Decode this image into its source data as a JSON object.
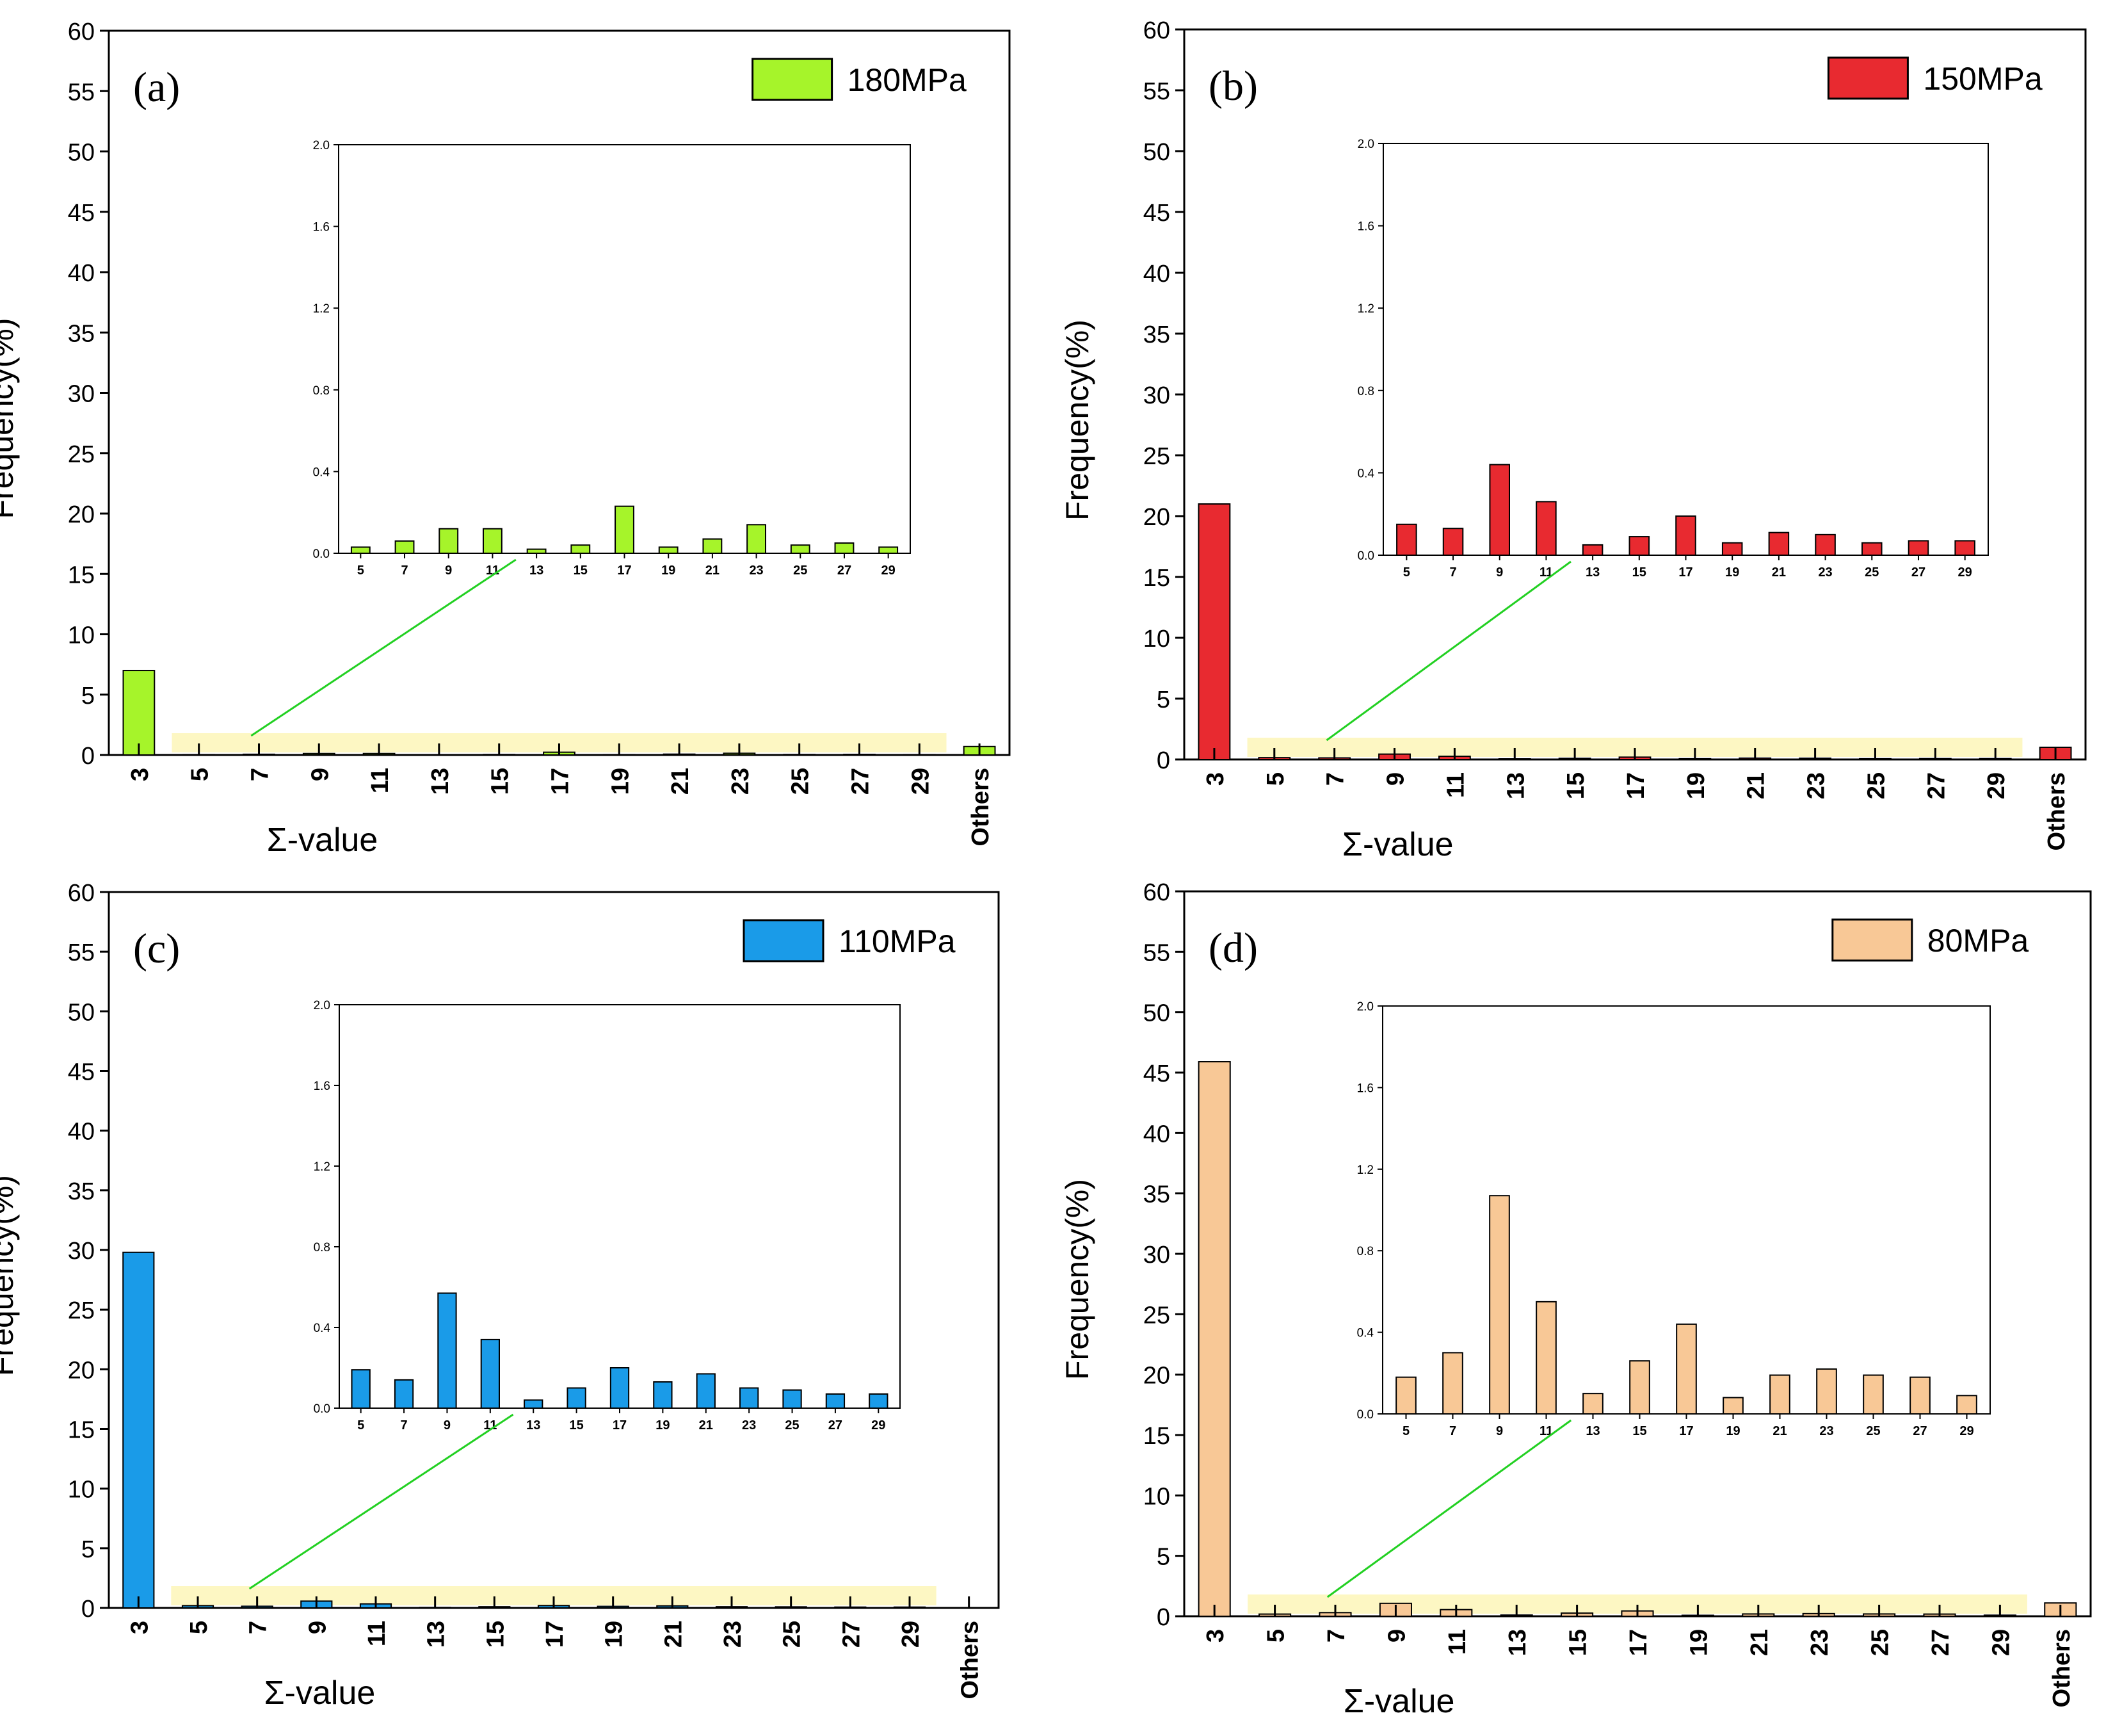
{
  "chart_data": [
    {
      "type": "bar",
      "panel_label": "(a)",
      "legend_label": "180MPa",
      "color": "#a6f42a",
      "xlabel": "Σ-value",
      "ylabel": "Frequency(%)",
      "ylim": [
        0,
        60
      ],
      "yticks": [
        0,
        5,
        10,
        15,
        20,
        25,
        30,
        35,
        40,
        45,
        50,
        55,
        60
      ],
      "categories": [
        "3",
        "5",
        "7",
        "9",
        "11",
        "13",
        "15",
        "17",
        "19",
        "21",
        "23",
        "25",
        "27",
        "29",
        "Others"
      ],
      "values": [
        7.0,
        0.03,
        0.06,
        0.12,
        0.12,
        0.02,
        0.04,
        0.23,
        0.03,
        0.07,
        0.14,
        0.04,
        0.05,
        0.03,
        0.7
      ],
      "inset": {
        "ylim": [
          0,
          2.0
        ],
        "yticks": [
          "0.0",
          "0.4",
          "0.8",
          "1.2",
          "1.6",
          "2.0"
        ],
        "categories": [
          "5",
          "7",
          "9",
          "11",
          "13",
          "15",
          "17",
          "19",
          "21",
          "23",
          "25",
          "27",
          "29"
        ],
        "values": [
          0.03,
          0.06,
          0.12,
          0.12,
          0.02,
          0.04,
          0.23,
          0.03,
          0.07,
          0.14,
          0.04,
          0.05,
          0.03
        ]
      }
    },
    {
      "type": "bar",
      "panel_label": "(b)",
      "legend_label": "150MPa",
      "color": "#e82a30",
      "xlabel": "Σ-value",
      "ylabel": "Frequency(%)",
      "ylim": [
        0,
        60
      ],
      "yticks": [
        0,
        5,
        10,
        15,
        20,
        25,
        30,
        35,
        40,
        45,
        50,
        55,
        60
      ],
      "categories": [
        "3",
        "5",
        "7",
        "9",
        "11",
        "13",
        "15",
        "17",
        "19",
        "21",
        "23",
        "25",
        "27",
        "29",
        "Others"
      ],
      "values": [
        21.0,
        0.15,
        0.13,
        0.44,
        0.26,
        0.05,
        0.09,
        0.19,
        0.06,
        0.11,
        0.1,
        0.06,
        0.07,
        0.07,
        1.0
      ],
      "inset": {
        "ylim": [
          0,
          2.0
        ],
        "yticks": [
          "0.0",
          "0.4",
          "0.8",
          "1.2",
          "1.6",
          "2.0"
        ],
        "categories": [
          "5",
          "7",
          "9",
          "11",
          "13",
          "15",
          "17",
          "19",
          "21",
          "23",
          "25",
          "27",
          "29"
        ],
        "values": [
          0.15,
          0.13,
          0.44,
          0.26,
          0.05,
          0.09,
          0.19,
          0.06,
          0.11,
          0.1,
          0.06,
          0.07,
          0.07
        ]
      }
    },
    {
      "type": "bar",
      "panel_label": "(c)",
      "legend_label": "110MPa",
      "color": "#1a9be8",
      "xlabel": "Σ-value",
      "ylabel": "Frequency(%)",
      "ylim": [
        0,
        60
      ],
      "yticks": [
        0,
        5,
        10,
        15,
        20,
        25,
        30,
        35,
        40,
        45,
        50,
        55,
        60
      ],
      "categories": [
        "3",
        "5",
        "7",
        "9",
        "11",
        "13",
        "15",
        "17",
        "19",
        "21",
        "23",
        "25",
        "27",
        "29",
        "Others"
      ],
      "values": [
        29.8,
        0.19,
        0.14,
        0.57,
        0.34,
        0.04,
        0.1,
        0.2,
        0.13,
        0.17,
        0.1,
        0.09,
        0.07,
        0.07,
        0.0
      ],
      "inset": {
        "ylim": [
          0,
          2.0
        ],
        "yticks": [
          "0.0",
          "0.4",
          "0.8",
          "1.2",
          "1.6",
          "2.0"
        ],
        "categories": [
          "5",
          "7",
          "9",
          "11",
          "13",
          "15",
          "17",
          "19",
          "21",
          "23",
          "25",
          "27",
          "29"
        ],
        "values": [
          0.19,
          0.14,
          0.57,
          0.34,
          0.04,
          0.1,
          0.2,
          0.13,
          0.17,
          0.1,
          0.09,
          0.07,
          0.07
        ]
      }
    },
    {
      "type": "bar",
      "panel_label": "(d)",
      "legend_label": "80MPa",
      "color": "#f8c896",
      "xlabel": "Σ-value",
      "ylabel": "Frequency(%)",
      "ylim": [
        0,
        60
      ],
      "yticks": [
        0,
        5,
        10,
        15,
        20,
        25,
        30,
        35,
        40,
        45,
        50,
        55,
        60
      ],
      "categories": [
        "3",
        "5",
        "7",
        "9",
        "11",
        "13",
        "15",
        "17",
        "19",
        "21",
        "23",
        "25",
        "27",
        "29",
        "Others"
      ],
      "values": [
        45.9,
        0.18,
        0.3,
        1.07,
        0.55,
        0.1,
        0.26,
        0.44,
        0.08,
        0.19,
        0.22,
        0.19,
        0.18,
        0.09,
        1.1
      ],
      "inset": {
        "ylim": [
          0,
          2.0
        ],
        "yticks": [
          "0.0",
          "0.4",
          "0.8",
          "1.2",
          "1.6",
          "2.0"
        ],
        "categories": [
          "5",
          "7",
          "9",
          "11",
          "13",
          "15",
          "17",
          "19",
          "21",
          "23",
          "25",
          "27",
          "29"
        ],
        "values": [
          0.18,
          0.3,
          1.07,
          0.55,
          0.1,
          0.26,
          0.44,
          0.08,
          0.19,
          0.22,
          0.19,
          0.18,
          0.09
        ]
      }
    }
  ]
}
